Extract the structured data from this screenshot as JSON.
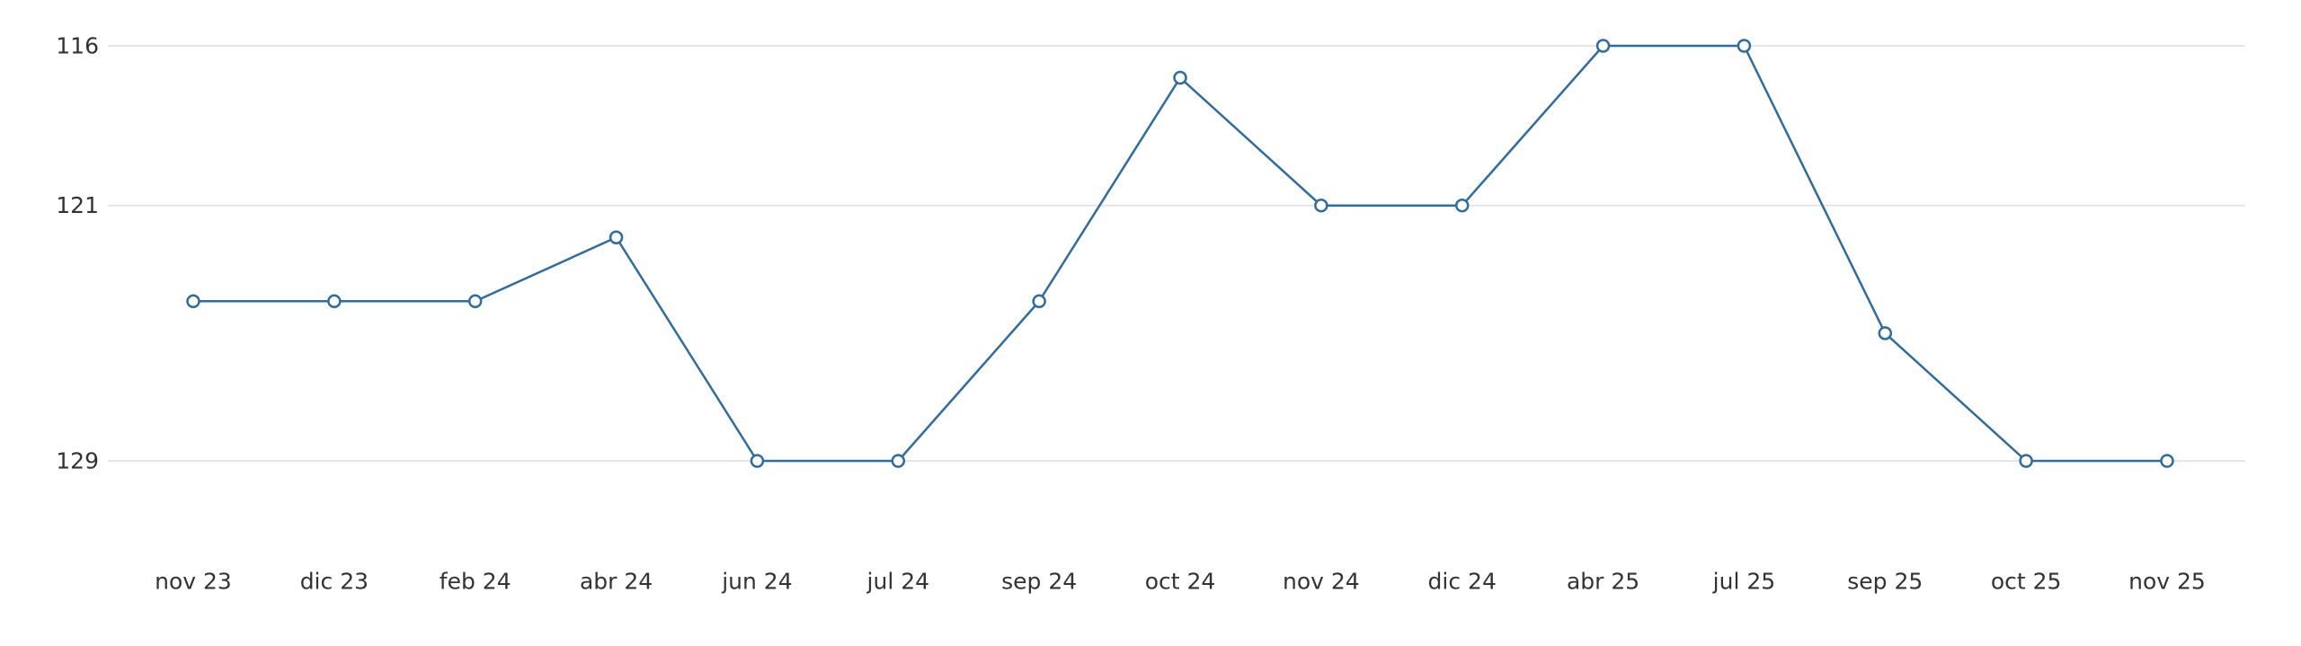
{
  "chart_data": {
    "type": "line",
    "title": "",
    "xlabel": "",
    "ylabel": "",
    "categories": [
      "nov 23",
      "dic 23",
      "feb 24",
      "abr 24",
      "jun 24",
      "jul 24",
      "sep 24",
      "oct 24",
      "nov 24",
      "dic 24",
      "abr 25",
      "jul 25",
      "sep 25",
      "oct 25",
      "nov 25"
    ],
    "series": [
      {
        "values": [
          124,
          124,
          124,
          122,
          129,
          129,
          124,
          117,
          121,
          121,
          116,
          116,
          125,
          129,
          129
        ]
      }
    ],
    "y_ticks": [
      116,
      121,
      129
    ],
    "ylim": [
      116,
      129
    ],
    "y_inverted": true,
    "grid": true,
    "legend": "none",
    "colors": {
      "line": "#2f6c9f",
      "point_fill": "#ffffff",
      "grid": "#e6e6e6",
      "text": "#333333"
    }
  }
}
